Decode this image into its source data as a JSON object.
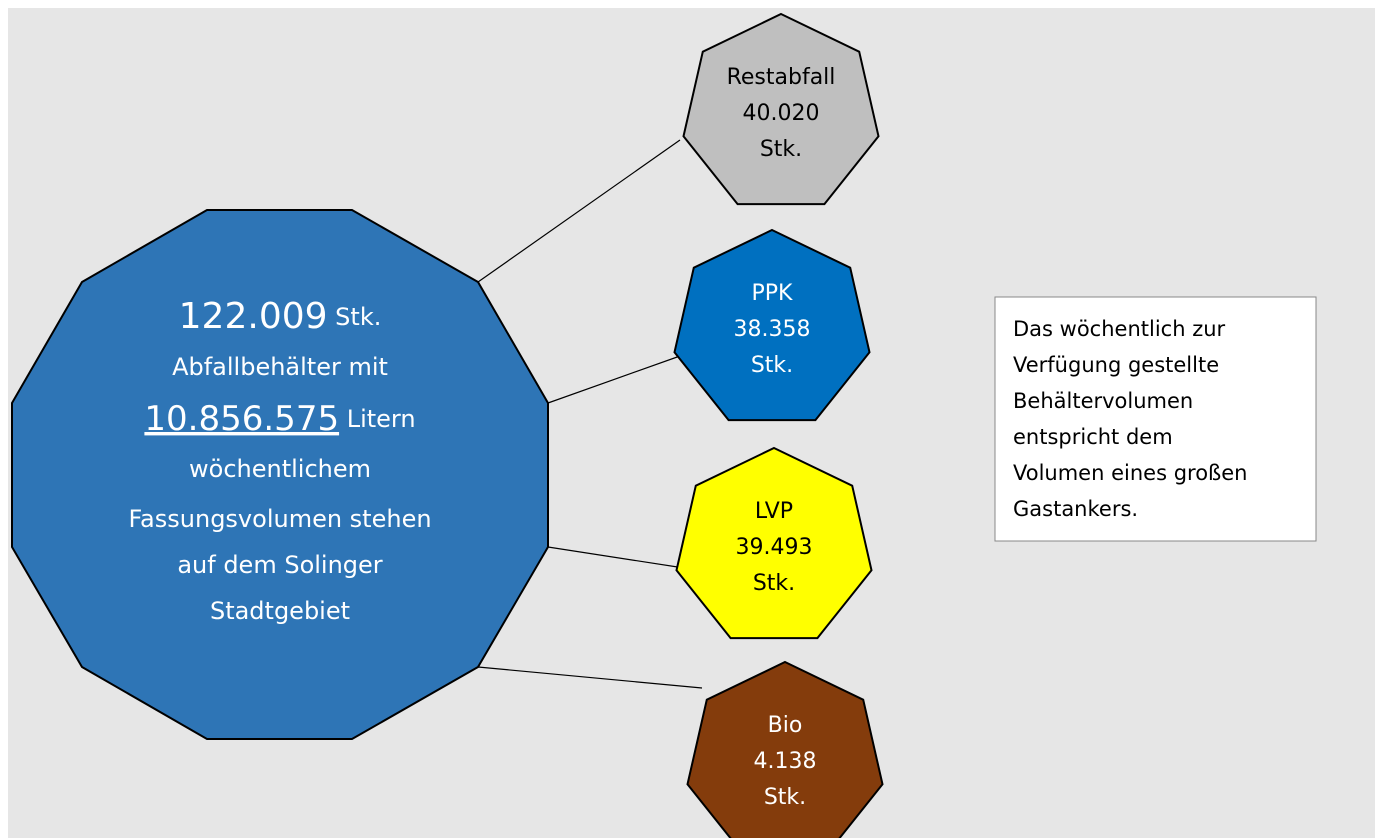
{
  "center": {
    "count": "122.009",
    "count_unit": "Stk.",
    "line2": "Abfallbehälter mit",
    "volume": "10.856.575",
    "volume_unit": "Litern",
    "line4": "wöchentlichem",
    "line5": "Fassungsvolumen stehen",
    "line6": "auf dem Solinger",
    "line7": "Stadtgebiet"
  },
  "nodes": [
    {
      "label": "Restabfall",
      "count": "40.020",
      "unit": "Stk.",
      "color": "#bfbfbf",
      "text_color": "#000000"
    },
    {
      "label": "PPK",
      "count": "38.358",
      "unit": "Stk.",
      "color": "#0070c0",
      "text_color": "#ffffff"
    },
    {
      "label": "LVP",
      "count": "39.493",
      "unit": "Stk.",
      "color": "#ffff00",
      "text_color": "#000000"
    },
    {
      "label": "Bio",
      "count": "4.138",
      "unit": "Stk.",
      "color": "#843c0c",
      "text_color": "#ffffff"
    }
  ],
  "note": {
    "lines": [
      "Das wöchentlich zur",
      "Verfügung gestellte",
      "Behältervolumen",
      "entspricht dem",
      "Volumen eines großen",
      "Gastankers."
    ]
  }
}
